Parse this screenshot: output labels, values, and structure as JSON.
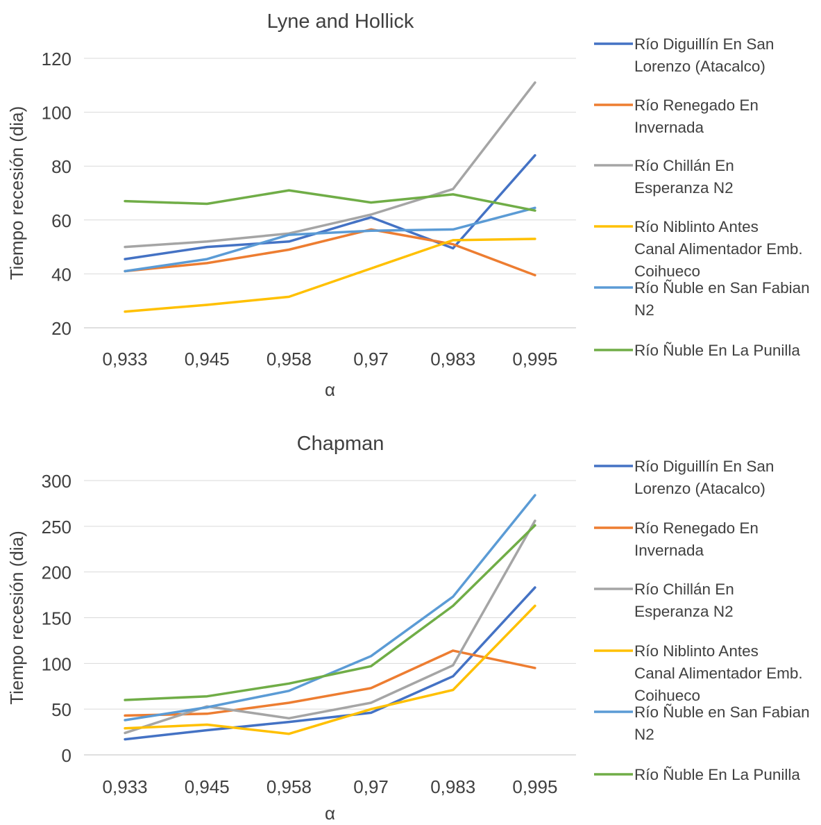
{
  "chart_data": [
    {
      "type": "line",
      "title": "Lyne and Hollick",
      "xlabel": "α",
      "ylabel": "Tiempo recesión (dia)",
      "categories": [
        "0,933",
        "0,945",
        "0,958",
        "0,97",
        "0,983",
        "0,995"
      ],
      "ylim": [
        20,
        120
      ],
      "yticks": [
        20,
        40,
        60,
        80,
        100,
        120
      ],
      "grid": true,
      "legend": "right",
      "series": [
        {
          "name": "Río Diguillín En San Lorenzo (Atacalco)",
          "color": "#4472C4",
          "values": [
            45.5,
            50,
            52,
            61,
            49.5,
            84
          ]
        },
        {
          "name": "Río Renegado En Invernada",
          "color": "#ED7D31",
          "values": [
            41,
            44,
            49,
            56.5,
            51,
            39.5
          ]
        },
        {
          "name": "Río Chillán En Esperanza N2",
          "color": "#A5A5A5",
          "values": [
            50,
            52,
            55,
            62,
            71.5,
            111
          ]
        },
        {
          "name": "Río Niblinto Antes Canal Alimentador Emb. Coihueco",
          "color": "#FFC000",
          "values": [
            26,
            28.5,
            31.5,
            42,
            52.5,
            53
          ]
        },
        {
          "name": "Río Ñuble en San Fabian N2",
          "color": "#5B9BD5",
          "values": [
            41,
            45.5,
            54.5,
            56,
            56.5,
            64.5
          ]
        },
        {
          "name": "Río Ñuble En La Punilla",
          "color": "#70AD47",
          "values": [
            67,
            66,
            71,
            66.5,
            69.5,
            63.5
          ]
        }
      ]
    },
    {
      "type": "line",
      "title": "Chapman",
      "xlabel": "α",
      "ylabel": "Tiempo recesión (dia)",
      "categories": [
        "0,933",
        "0,945",
        "0,958",
        "0,97",
        "0,983",
        "0,995"
      ],
      "ylim": [
        0,
        300
      ],
      "yticks": [
        0,
        50,
        100,
        150,
        200,
        250,
        300
      ],
      "grid": true,
      "legend": "right",
      "series": [
        {
          "name": "Río Diguillín En San Lorenzo (Atacalco)",
          "color": "#4472C4",
          "values": [
            17,
            27,
            36,
            46,
            86,
            183
          ]
        },
        {
          "name": "Río Renegado En Invernada",
          "color": "#ED7D31",
          "values": [
            43,
            45,
            57,
            73,
            114,
            95
          ]
        },
        {
          "name": "Río Chillán En Esperanza N2",
          "color": "#A5A5A5",
          "values": [
            24,
            53,
            40,
            57,
            98,
            256
          ]
        },
        {
          "name": "Río Niblinto Antes Canal Alimentador Emb. Coihueco",
          "color": "#FFC000",
          "values": [
            29,
            33,
            23,
            50,
            71,
            163
          ]
        },
        {
          "name": "Río Ñuble en San Fabian N2",
          "color": "#5B9BD5",
          "values": [
            38,
            52,
            70,
            108,
            173,
            284
          ]
        },
        {
          "name": "Río Ñuble En La Punilla",
          "color": "#70AD47",
          "values": [
            60,
            64,
            78,
            97,
            163,
            251
          ]
        }
      ]
    }
  ]
}
